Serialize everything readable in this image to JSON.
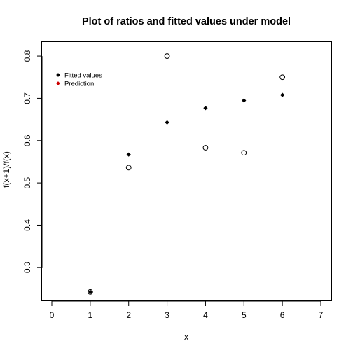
{
  "chart_data": {
    "type": "scatter",
    "title": "Plot of ratios and fitted values under model",
    "xlabel": "x",
    "ylabel": "f(x+1)/f(x)",
    "xlim": [
      0,
      7
    ],
    "ylim": [
      0.25,
      0.82
    ],
    "x_ticks": [
      "0",
      "1",
      "2",
      "3",
      "4",
      "5",
      "6",
      "7"
    ],
    "y_ticks": [
      "0.3",
      "0.4",
      "0.5",
      "0.6",
      "0.7",
      "0.8"
    ],
    "grid": false,
    "legend_position": "top-left",
    "series": [
      {
        "name": "Fitted values",
        "marker": "filled-diamond",
        "color": "#000000",
        "x": [
          1,
          2,
          3,
          4,
          5,
          6
        ],
        "y": [
          0.242,
          0.567,
          0.643,
          0.677,
          0.695,
          0.708
        ]
      },
      {
        "name": "Prediction",
        "marker": "filled-diamond",
        "color": "#cc0000",
        "x": [],
        "y": []
      }
    ],
    "observed": {
      "marker": "open-circle",
      "color": "#000000",
      "x": [
        1,
        2,
        3,
        4,
        5,
        6
      ],
      "y": [
        0.242,
        0.536,
        0.8,
        0.583,
        0.571,
        0.75
      ]
    }
  }
}
